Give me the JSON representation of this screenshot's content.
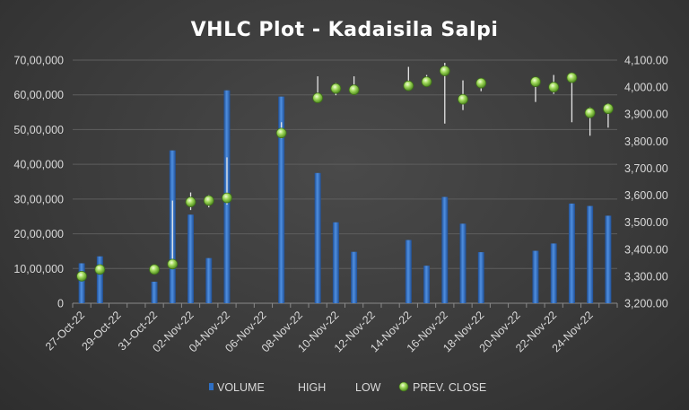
{
  "chart_data": {
    "type": "bar",
    "title": "VHLC Plot - Kadaisila Salpi",
    "x_tick_labels": [
      "27-Oct-22",
      "29-Oct-22",
      "31-Oct-22",
      "02-Nov-22",
      "04-Nov-22",
      "06-Nov-22",
      "08-Nov-22",
      "10-Nov-22",
      "12-Nov-22",
      "14-Nov-22",
      "16-Nov-22",
      "18-Nov-22",
      "20-Nov-22",
      "22-Nov-22",
      "24-Nov-22"
    ],
    "y_left": {
      "min": 0,
      "max": 7000000,
      "step": 1000000,
      "tick_labels": [
        "0",
        "10,00,000",
        "20,00,000",
        "30,00,000",
        "40,00,000",
        "50,00,000",
        "60,00,000",
        "70,00,000"
      ]
    },
    "y_right": {
      "min": 3200,
      "max": 4100,
      "step": 100,
      "tick_labels": [
        "3,200.00",
        "3,300.00",
        "3,400.00",
        "3,500.00",
        "3,600.00",
        "3,700.00",
        "3,800.00",
        "3,900.00",
        "4,000.00",
        "4,100.00"
      ]
    },
    "legend": [
      "VOLUME",
      "HIGH",
      "LOW",
      "PREV. CLOSE"
    ],
    "colors": {
      "volume": "#2e6fc4",
      "volume_light": "#6aa7ee",
      "hilo": "#e6e6e6",
      "close": "#8fcf4a"
    },
    "series": [
      {
        "date": "2022-10-27",
        "volume": 1150000,
        "high": 3320,
        "low": 3290,
        "prev_close": 3300
      },
      {
        "date": "2022-10-28",
        "volume": 1350000,
        "high": 3345,
        "low": 3310,
        "prev_close": 3325
      },
      {
        "date": "2022-10-31",
        "volume": 620000,
        "high": 3340,
        "low": 3310,
        "prev_close": 3325
      },
      {
        "date": "2022-11-01",
        "volume": 4400000,
        "high": 3580,
        "low": 3335,
        "prev_close": 3345
      },
      {
        "date": "2022-11-02",
        "volume": 2550000,
        "high": 3610,
        "low": 3545,
        "prev_close": 3575
      },
      {
        "date": "2022-11-03",
        "volume": 1300000,
        "high": 3600,
        "low": 3555,
        "prev_close": 3580
      },
      {
        "date": "2022-11-04",
        "volume": 6130000,
        "high": 3740,
        "low": 3565,
        "prev_close": 3590
      },
      {
        "date": "2022-11-07",
        "volume": 5950000,
        "high": 3870,
        "low": 3810,
        "prev_close": 3830
      },
      {
        "date": "2022-11-09",
        "volume": 3750000,
        "high": 4040,
        "low": 3955,
        "prev_close": 3960
      },
      {
        "date": "2022-11-10",
        "volume": 2330000,
        "high": 4015,
        "low": 3970,
        "prev_close": 3995
      },
      {
        "date": "2022-11-11",
        "volume": 1480000,
        "high": 4040,
        "low": 3975,
        "prev_close": 3990
      },
      {
        "date": "2022-11-14",
        "volume": 1820000,
        "high": 4075,
        "low": 3990,
        "prev_close": 4005
      },
      {
        "date": "2022-11-15",
        "volume": 1080000,
        "high": 4045,
        "low": 4005,
        "prev_close": 4020
      },
      {
        "date": "2022-11-16",
        "volume": 3060000,
        "high": 4090,
        "low": 3865,
        "prev_close": 4060
      },
      {
        "date": "2022-11-17",
        "volume": 2290000,
        "high": 4025,
        "low": 3915,
        "prev_close": 3955
      },
      {
        "date": "2022-11-18",
        "volume": 1470000,
        "high": 4030,
        "low": 3985,
        "prev_close": 4015
      },
      {
        "date": "2022-11-21",
        "volume": 1510000,
        "high": 4030,
        "low": 3945,
        "prev_close": 4020
      },
      {
        "date": "2022-11-22",
        "volume": 1720000,
        "high": 4045,
        "low": 3975,
        "prev_close": 4000
      },
      {
        "date": "2022-11-23",
        "volume": 2870000,
        "high": 4050,
        "low": 3870,
        "prev_close": 4035
      },
      {
        "date": "2022-11-24",
        "volume": 2800000,
        "high": 3925,
        "low": 3820,
        "prev_close": 3905
      },
      {
        "date": "2022-11-25",
        "volume": 2520000,
        "high": 3940,
        "low": 3850,
        "prev_close": 3920
      }
    ]
  }
}
